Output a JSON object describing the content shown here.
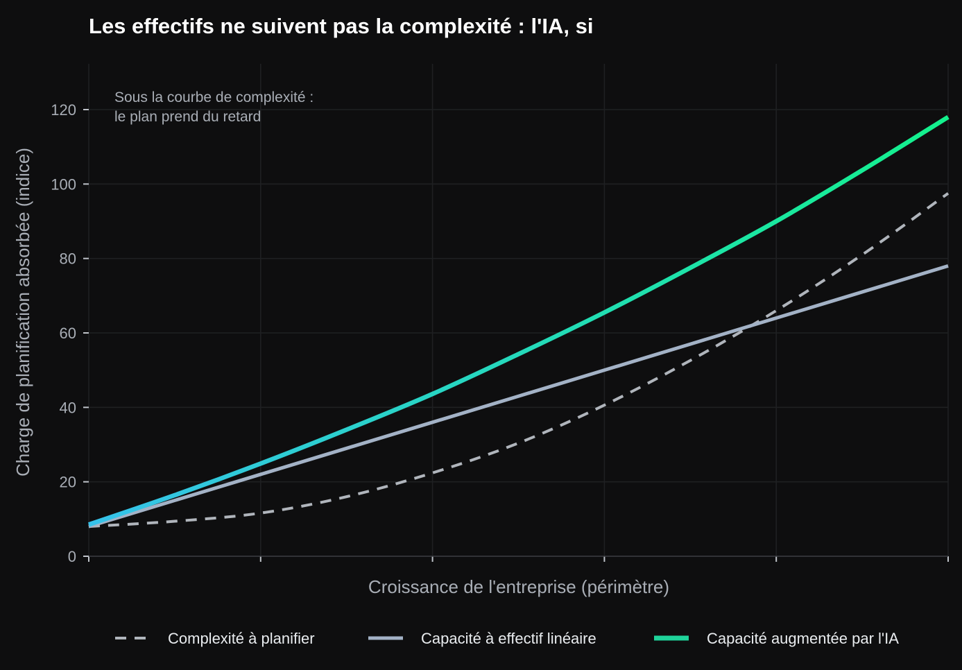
{
  "chart_data": {
    "type": "line",
    "title": "Les effectifs ne suivent pas la complexité : l'IA, si",
    "xlabel": "Croissance de l'entreprise (périmètre)",
    "ylabel": "Charge de planification absorbée (indice)",
    "xlim": [
      0,
      5
    ],
    "ylim": [
      0,
      120
    ],
    "yticks": [
      0,
      20,
      40,
      60,
      80,
      100,
      120
    ],
    "xticks": [
      0,
      1,
      2,
      3,
      4,
      5
    ],
    "grid": true,
    "legend_position": "bottom",
    "annotation": [
      "Sous la courbe de complexité :",
      "le plan prend du retard"
    ],
    "series": [
      {
        "name": "Complexité à planifier",
        "style": "dashed",
        "color": "#b0b5bc",
        "x": [
          0,
          0.5,
          1,
          1.5,
          2,
          2.5,
          3,
          3.5,
          4,
          4.5,
          5
        ],
        "values": [
          8,
          9.4,
          11.6,
          16,
          22.4,
          30.4,
          40.6,
          52.6,
          66,
          81,
          97.5
        ]
      },
      {
        "name": "Capacité à effectif linéaire",
        "style": "solid",
        "color": "#a3b2c6",
        "x": [
          0,
          1,
          2,
          3,
          4,
          5
        ],
        "values": [
          8,
          22,
          36,
          50,
          64,
          78
        ]
      },
      {
        "name": "Capacité augmentée par l'IA",
        "style": "gradient",
        "color": "#1fd39a",
        "gradient": [
          "#36c2ea",
          "#13f18c"
        ],
        "x": [
          0,
          0.5,
          1,
          1.5,
          2,
          2.5,
          3,
          3.5,
          4,
          4.5,
          5
        ],
        "values": [
          8.5,
          16.4,
          24.9,
          34,
          43.6,
          54.3,
          65.5,
          77.5,
          90,
          103.7,
          118
        ]
      }
    ]
  }
}
